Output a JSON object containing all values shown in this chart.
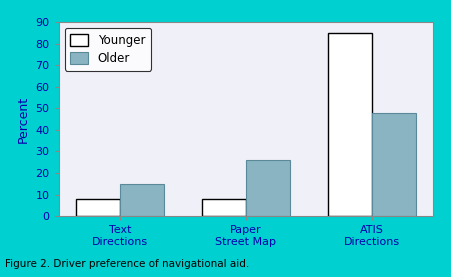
{
  "categories": [
    "Text\nDirections",
    "Paper\nStreet Map",
    "ATIS\nDirections"
  ],
  "younger_values": [
    8,
    8,
    85
  ],
  "older_values": [
    15,
    26,
    48
  ],
  "younger_color": "#ffffff",
  "older_color": "#8ab4c2",
  "younger_edge": "#000000",
  "older_edge": "#5a8a9a",
  "ylabel": "Percent",
  "ylim": [
    0,
    90
  ],
  "yticks": [
    0,
    10,
    20,
    30,
    40,
    50,
    60,
    70,
    80,
    90
  ],
  "legend_younger": "Younger",
  "legend_older": "Older",
  "bar_width": 0.35,
  "figure_caption": "Figure 2. Driver preference of navigational aid.",
  "bg_outer": "#00d0d0",
  "bg_inner": "#f0f0f8",
  "axis_label_color": "#0000aa",
  "tick_label_color": "#0000aa",
  "ylabel_color": "#0000aa",
  "caption_color": "#000000",
  "title_fontsize": 9,
  "tick_fontsize": 8,
  "legend_fontsize": 8.5,
  "ylabel_fontsize": 9
}
